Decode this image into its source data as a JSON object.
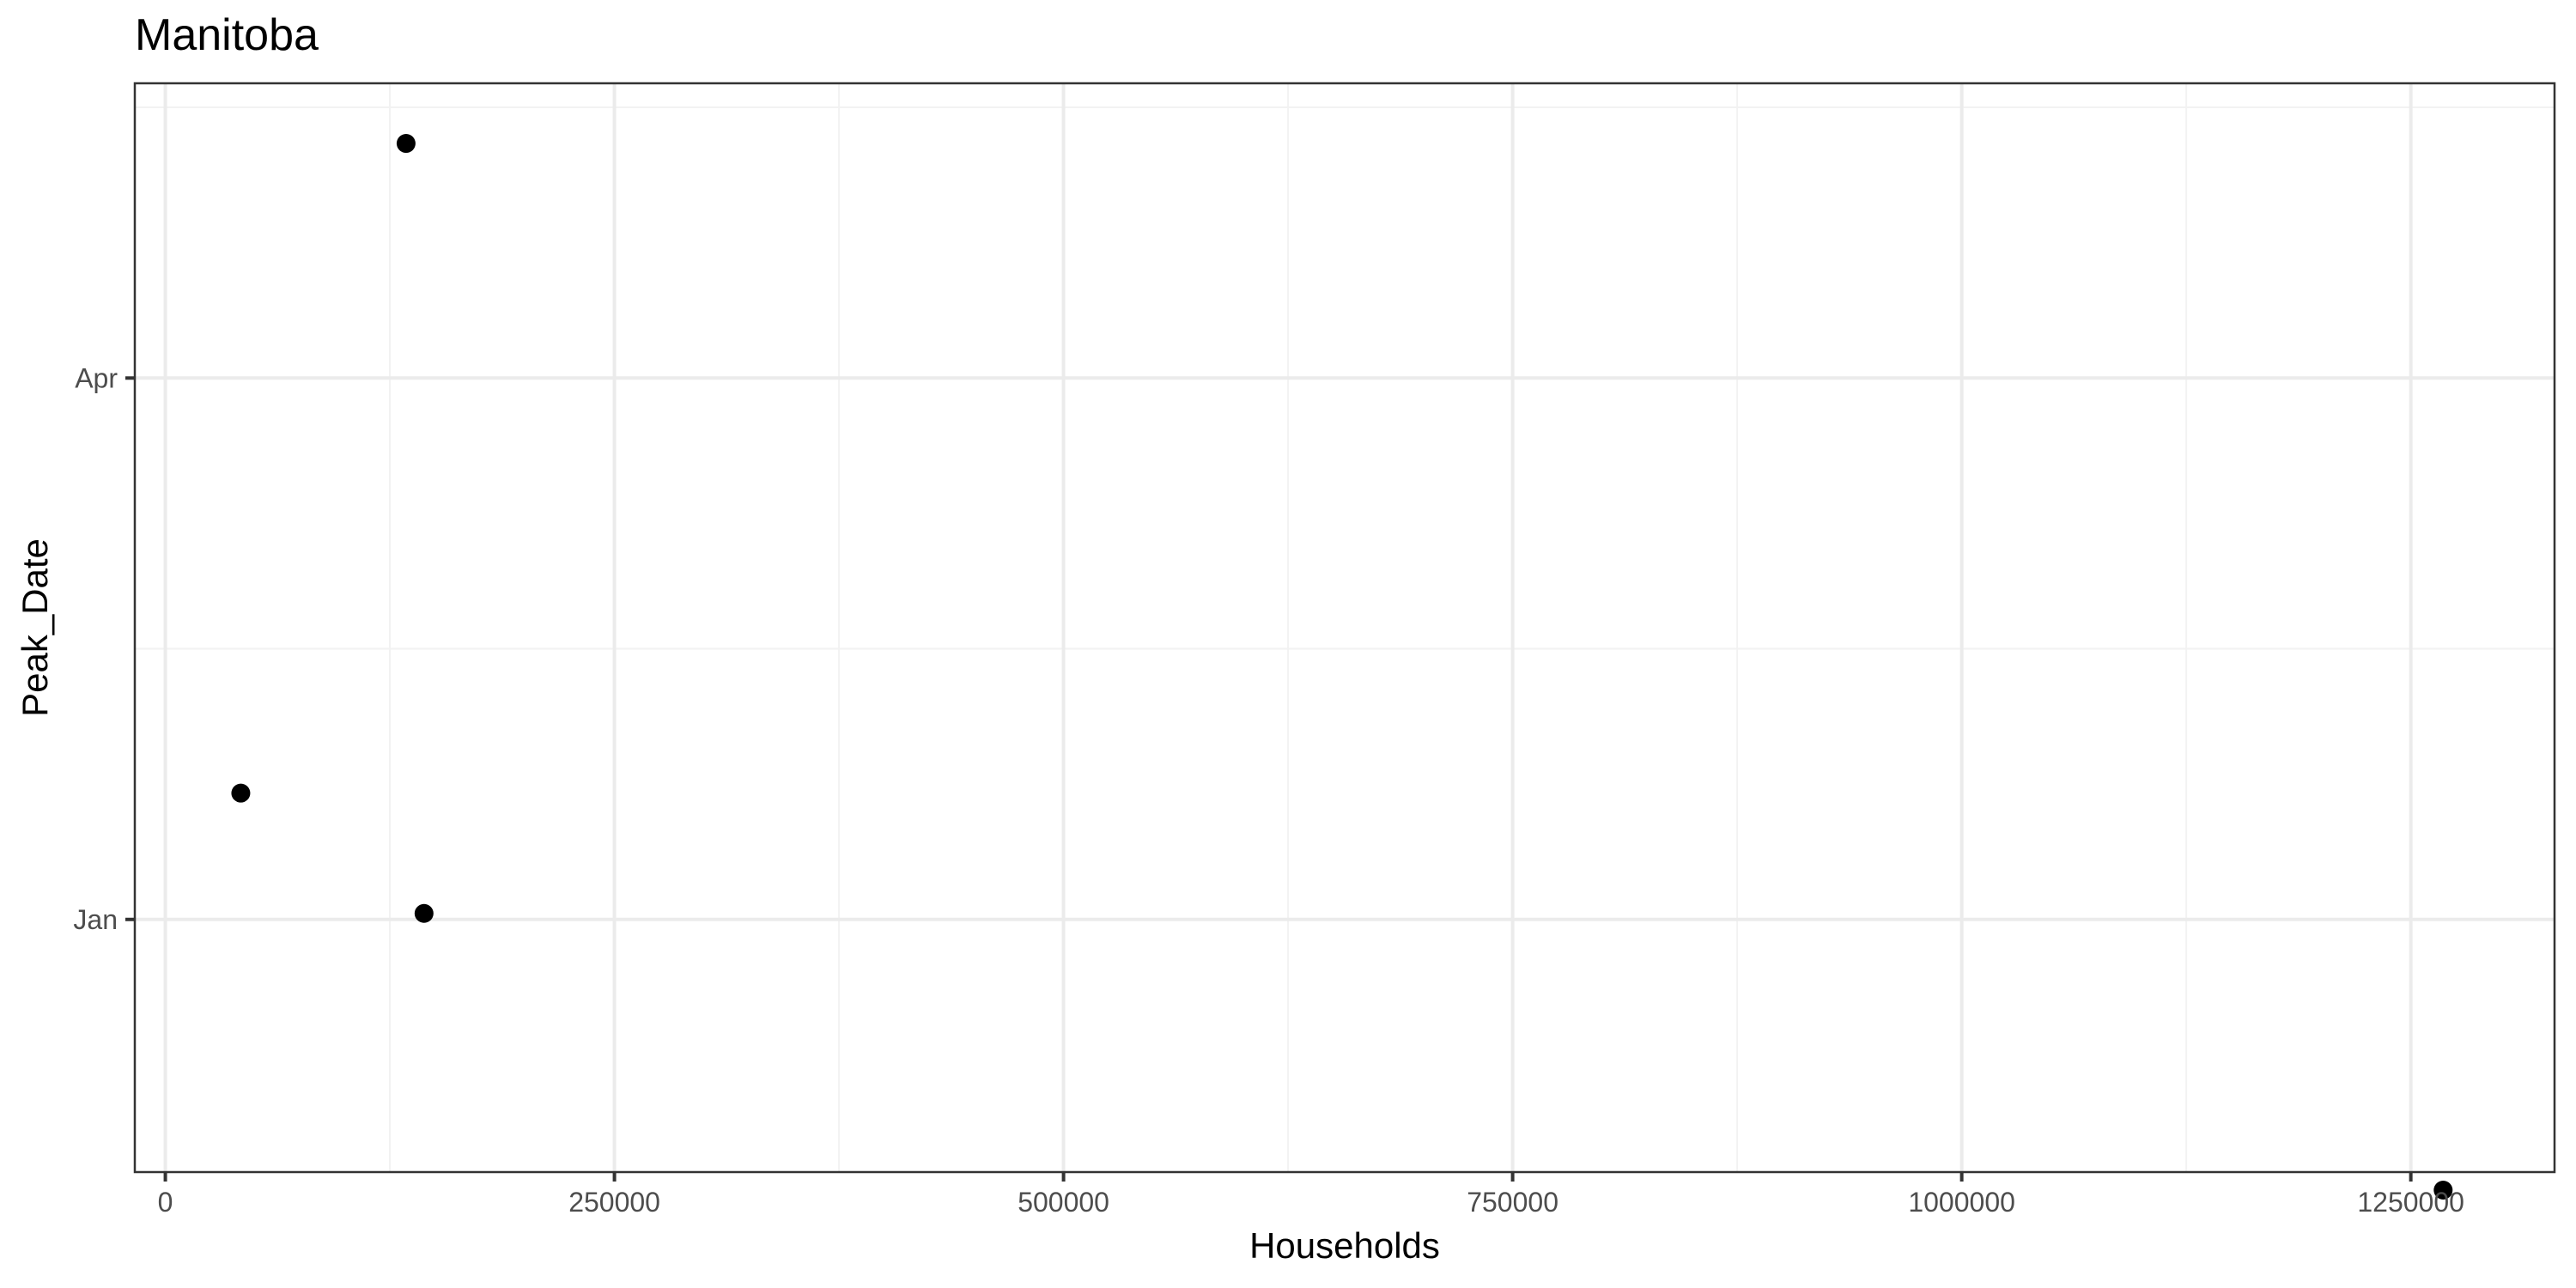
{
  "chart_data": {
    "type": "scatter",
    "title": "Manitoba",
    "xlabel": "Households",
    "ylabel": "Peak_Date",
    "x_ticks": [
      0,
      250000,
      500000,
      750000,
      1000000,
      1250000
    ],
    "x_tick_labels": [
      "0",
      "250000",
      "500000",
      "750000",
      "1000000",
      "1250000"
    ],
    "y_ticks": [
      "2021-01-01",
      "2021-04-01"
    ],
    "y_tick_labels": [
      "Jan",
      "Apr"
    ],
    "xlim": [
      -17000,
      1330000
    ],
    "ylim": [
      "2020-11-20",
      "2021-05-20"
    ],
    "grid": true,
    "points": [
      {
        "x": 134000,
        "y": "2021-05-10"
      },
      {
        "x": 42000,
        "y": "2021-01-22"
      },
      {
        "x": 144000,
        "y": "2021-01-02"
      },
      {
        "x": 1268000,
        "y": "2020-11-17"
      }
    ]
  }
}
